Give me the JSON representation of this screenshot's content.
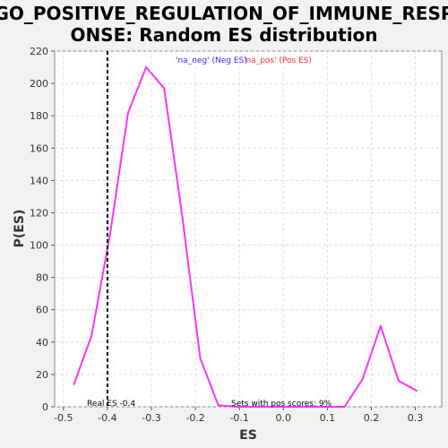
{
  "chart_data": {
    "type": "line",
    "title_line1": "GO_POSITIVE_REGULATION_OF_IMMUNE_RESP",
    "title_line2": "ONSE: Random ES distribution",
    "xlabel": "ES",
    "ylabel": "P(ES)",
    "xlim": [
      -0.52,
      0.36
    ],
    "ylim": [
      0,
      220
    ],
    "x_ticks": [
      -0.5,
      -0.4,
      -0.3,
      -0.2,
      -0.1,
      0.0,
      0.1,
      0.2,
      0.3
    ],
    "x_tick_labels": [
      "-0.5",
      "-0.4",
      "-0.3",
      "-0.2",
      "-0.1",
      "0.0",
      "0.1",
      "0.2",
      "0.3"
    ],
    "y_ticks": [
      0,
      20,
      40,
      60,
      80,
      100,
      120,
      140,
      160,
      180,
      200,
      220
    ],
    "y_tick_labels": [
      "0",
      "20",
      "40",
      "60",
      "80",
      "100",
      "120",
      "140",
      "160",
      "180",
      "200",
      "220"
    ],
    "grid": true,
    "series": [
      {
        "color": "#ff33ff",
        "x": [
          -0.476,
          -0.436,
          -0.394,
          -0.353,
          -0.312,
          -0.271,
          -0.23,
          -0.189,
          -0.148,
          -0.107,
          -0.066,
          -0.025,
          0.016,
          0.057,
          0.098,
          0.139,
          0.18,
          0.221,
          0.262,
          0.303
        ],
        "y": [
          14,
          44,
          107,
          182,
          210,
          197,
          118,
          30,
          1,
          0,
          0,
          0,
          0,
          0,
          0,
          0,
          17,
          50,
          16,
          10
        ]
      }
    ],
    "real_es": -0.4,
    "real_es_color": "#000000",
    "legend_neg": "'na_neg' (Neg ES)",
    "legend_neg_color": "#3333ff",
    "legend_pos": "'na_pos' (Pos ES)",
    "legend_pos_color": "#ff3333",
    "annotation_real_es": "Real ES -0.4",
    "annotation_pos_sets": "Sets with pos scores: 9%"
  }
}
